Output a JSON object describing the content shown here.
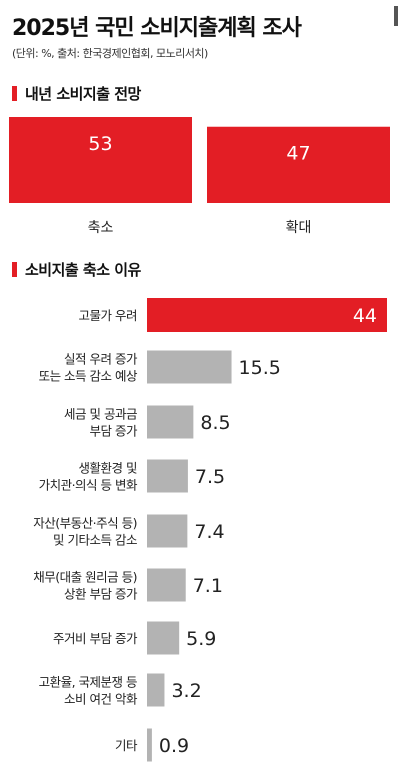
{
  "title": "2025년 국민 소비지출계획 조사",
  "source": "(단위: %, 출처: 한국경제인협회, 모노리서치)",
  "colors": {
    "accent": "#e31e25",
    "muted": "#b3b3b3"
  },
  "sections": {
    "outlook": "내년 소비지출 전망",
    "reasons": "소비지출 축소 이유"
  },
  "chart_data": [
    {
      "type": "bar",
      "title": "내년 소비지출 전망",
      "categories": [
        "축소",
        "확대"
      ],
      "values": [
        53,
        47
      ],
      "value_labels": [
        "53",
        "47"
      ],
      "unit": "%"
    },
    {
      "type": "bar",
      "orientation": "horizontal",
      "title": "소비지출 축소 이유",
      "categories": [
        [
          "고물가 우려"
        ],
        [
          "실적 우려 증가",
          "또는 소득 감소 예상"
        ],
        [
          "세금 및 공과금",
          "부담 증가"
        ],
        [
          "생활환경 및",
          "가치관·의식 등 변화"
        ],
        [
          "자산(부동산·주식 등)",
          "및 기타소득 감소"
        ],
        [
          "채무(대출 원리금 등)",
          "상환 부담 증가"
        ],
        [
          "주거비 부담 증가"
        ],
        [
          "고환율, 국제분쟁 등",
          "소비 여건 악화"
        ],
        [
          "기타"
        ]
      ],
      "values": [
        44,
        15.5,
        8.5,
        7.5,
        7.4,
        7.1,
        5.9,
        3.2,
        0.9
      ],
      "value_labels": [
        "44",
        "15.5",
        "8.5",
        "7.5",
        "7.4",
        "7.1",
        "5.9",
        "3.2",
        "0.9"
      ],
      "highlight_index": 0,
      "unit": "%"
    }
  ]
}
